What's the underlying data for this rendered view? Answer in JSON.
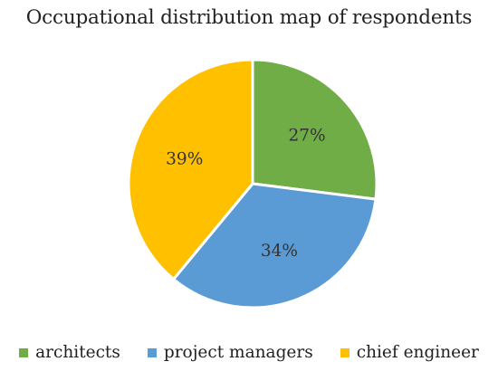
{
  "chart_data": {
    "type": "pie",
    "title": "Occupational distribution map of respondents",
    "categories": [
      "architects",
      "project managers",
      "chief engineer"
    ],
    "values": [
      27,
      34,
      39
    ],
    "labels": [
      "27%",
      "34%",
      "39%"
    ],
    "colors": [
      "#70ad47",
      "#5b9bd5",
      "#ffc000"
    ],
    "start_angle_deg": 0,
    "direction": "clockwise",
    "legend_position": "bottom",
    "grid": false
  }
}
